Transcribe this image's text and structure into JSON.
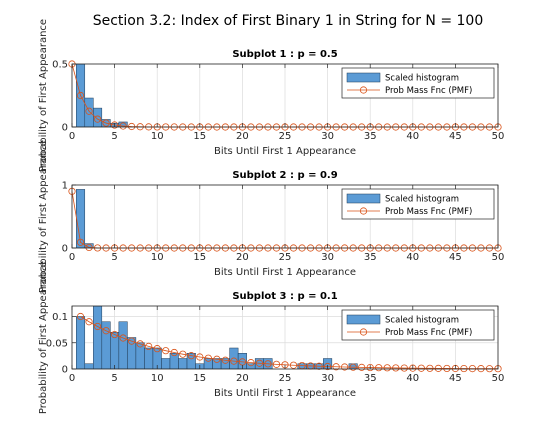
{
  "title": "Section 3.2: Index of First Binary 1 in String for N = 100",
  "legend": {
    "histogram": "Scaled histogram",
    "pmf": "Prob Mass Fnc (PMF)"
  },
  "colors": {
    "bar_fill": "#5b9bd5",
    "bar_edge": "#1f3b57",
    "pmf": "#d95319"
  },
  "chart_data": [
    {
      "type": "bar",
      "title": "Subplot 1 : p = 0.5",
      "xlabel": "Bits Until First 1 Appearance",
      "ylabel": "Probability of First Appearance",
      "xlim": [
        0,
        50
      ],
      "ylim": [
        0,
        0.5
      ],
      "xticks": [
        0,
        5,
        10,
        15,
        20,
        25,
        30,
        35,
        40,
        45,
        50
      ],
      "yticks": [
        {
          "v": 0,
          "t": "0"
        },
        {
          "v": 0.5,
          "t": "0.5"
        }
      ],
      "grid": true,
      "legend_position": "top-right",
      "x": [
        0,
        1,
        2,
        3,
        4,
        5,
        6
      ],
      "values": [
        0.0,
        0.5,
        0.23,
        0.15,
        0.06,
        0.03,
        0.04
      ],
      "pmf": {
        "p": 0.5,
        "x_from": 0,
        "x_to": 50
      }
    },
    {
      "type": "bar",
      "title": "Subplot 2 : p = 0.9",
      "xlabel": "Bits Until First 1 Appearance",
      "ylabel": "Probability of First Appearance",
      "xlim": [
        0,
        50
      ],
      "ylim": [
        0,
        1
      ],
      "xticks": [
        0,
        5,
        10,
        15,
        20,
        25,
        30,
        35,
        40,
        45,
        50
      ],
      "yticks": [
        {
          "v": 0,
          "t": "0"
        },
        {
          "v": 1,
          "t": "1"
        }
      ],
      "grid": true,
      "legend_position": "top-right",
      "x": [
        0,
        1,
        2
      ],
      "values": [
        0.0,
        0.93,
        0.07
      ],
      "pmf": {
        "p": 0.9,
        "x_from": 0,
        "x_to": 50
      }
    },
    {
      "type": "bar",
      "title": "Subplot 3 : p = 0.1",
      "xlabel": "Bits Until First 1 Appearance",
      "ylabel": "Probability of First Appearance",
      "xlim": [
        0,
        50
      ],
      "ylim": [
        0,
        0.12
      ],
      "xticks": [
        0,
        5,
        10,
        15,
        20,
        25,
        30,
        35,
        40,
        45,
        50
      ],
      "yticks": [
        {
          "v": 0,
          "t": "0"
        },
        {
          "v": 0.05,
          "t": "0.05"
        },
        {
          "v": 0.1,
          "t": "0.1"
        }
      ],
      "grid": true,
      "legend_position": "top-right",
      "x": [
        1,
        2,
        3,
        4,
        5,
        6,
        7,
        8,
        9,
        10,
        11,
        12,
        13,
        14,
        15,
        16,
        17,
        18,
        19,
        20,
        21,
        22,
        23,
        24,
        25,
        26,
        27,
        28,
        29,
        30,
        31,
        32,
        33
      ],
      "values": [
        0.1,
        0.01,
        0.12,
        0.09,
        0.07,
        0.09,
        0.06,
        0.05,
        0.04,
        0.04,
        0.02,
        0.03,
        0.02,
        0.03,
        0.01,
        0.02,
        0.02,
        0.02,
        0.04,
        0.03,
        0.01,
        0.02,
        0.02,
        0.0,
        0.0,
        0.0,
        0.01,
        0.01,
        0.01,
        0.02,
        0.0,
        0.0,
        0.01
      ],
      "pmf": {
        "p": 0.1,
        "x_from": 1,
        "x_to": 50
      }
    }
  ]
}
